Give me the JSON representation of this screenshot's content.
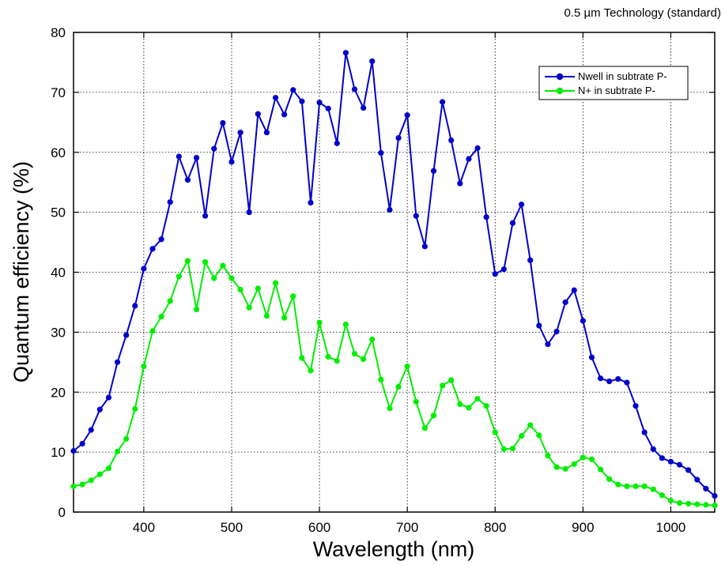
{
  "chart_data": {
    "type": "line",
    "annotation": "0.5 µm Technology (standard)",
    "xlabel": "Wavelength (nm)",
    "ylabel": "Quantum efficiency (%)",
    "xlim": [
      320,
      1050
    ],
    "ylim": [
      0,
      80
    ],
    "xticks": [
      400,
      500,
      600,
      700,
      800,
      900,
      1000
    ],
    "yticks": [
      0,
      10,
      20,
      30,
      40,
      50,
      60,
      70,
      80
    ],
    "grid": true,
    "legend_position": "top-right",
    "series": [
      {
        "name": "Nwell in subtrate P-",
        "color": "#0000cc",
        "x": [
          320,
          330,
          340,
          350,
          360,
          370,
          380,
          390,
          400,
          410,
          420,
          430,
          440,
          450,
          460,
          470,
          480,
          490,
          500,
          510,
          520,
          530,
          540,
          550,
          560,
          570,
          580,
          590,
          600,
          610,
          620,
          630,
          640,
          650,
          660,
          670,
          680,
          690,
          700,
          710,
          720,
          730,
          740,
          750,
          760,
          770,
          780,
          790,
          800,
          810,
          820,
          830,
          840,
          850,
          860,
          870,
          880,
          890,
          900,
          910,
          920,
          930,
          940,
          950,
          960,
          970,
          980,
          990,
          1000,
          1010,
          1020,
          1030,
          1040,
          1050
        ],
        "y": [
          10.2,
          11.4,
          13.7,
          17.1,
          19.1,
          25.0,
          29.5,
          34.4,
          40.6,
          43.9,
          45.5,
          51.7,
          59.3,
          55.4,
          59.1,
          49.4,
          60.6,
          64.9,
          58.4,
          63.3,
          50.0,
          66.4,
          63.3,
          69.1,
          66.3,
          70.4,
          68.5,
          51.6,
          68.3,
          67.3,
          61.5,
          76.6,
          70.5,
          67.4,
          75.2,
          59.9,
          50.4,
          62.4,
          66.2,
          49.4,
          44.3,
          56.9,
          68.4,
          62.0,
          54.8,
          58.9,
          60.7,
          49.2,
          39.7,
          40.5,
          48.2,
          51.3,
          42.0,
          31.1,
          28.0,
          30.1,
          35.0,
          37.0,
          31.9,
          25.8,
          22.3,
          21.8,
          22.2,
          21.6,
          17.7,
          13.3,
          10.5,
          9.0,
          8.4,
          7.9,
          7.0,
          5.4,
          3.9,
          2.7
        ]
      },
      {
        "name": "N+ in subtrate P-",
        "color": "#00ee00",
        "x": [
          320,
          330,
          340,
          350,
          360,
          370,
          380,
          390,
          400,
          410,
          420,
          430,
          440,
          450,
          460,
          470,
          480,
          490,
          500,
          510,
          520,
          530,
          540,
          550,
          560,
          570,
          580,
          590,
          600,
          610,
          620,
          630,
          640,
          650,
          660,
          670,
          680,
          690,
          700,
          710,
          720,
          730,
          740,
          750,
          760,
          770,
          780,
          790,
          800,
          810,
          820,
          830,
          840,
          850,
          860,
          870,
          880,
          890,
          900,
          910,
          920,
          930,
          940,
          950,
          960,
          970,
          980,
          990,
          1000,
          1010,
          1020,
          1030,
          1040,
          1050
        ],
        "y": [
          4.3,
          4.6,
          5.3,
          6.3,
          7.3,
          10.1,
          12.2,
          17.2,
          24.3,
          30.2,
          32.6,
          35.2,
          39.3,
          41.9,
          33.8,
          41.7,
          39.0,
          41.1,
          39.0,
          37.1,
          34.1,
          37.3,
          32.7,
          38.2,
          32.4,
          36.0,
          25.7,
          23.6,
          31.6,
          25.9,
          25.2,
          31.3,
          26.4,
          25.5,
          28.8,
          22.1,
          17.3,
          20.9,
          24.3,
          18.4,
          14.0,
          16.1,
          21.1,
          22.0,
          18.0,
          17.4,
          18.9,
          17.7,
          13.3,
          10.5,
          10.6,
          12.7,
          14.5,
          12.8,
          9.4,
          7.5,
          7.2,
          8.0,
          9.1,
          8.8,
          7.1,
          5.5,
          4.6,
          4.3,
          4.3,
          4.3,
          3.8,
          2.8,
          1.9,
          1.5,
          1.4,
          1.3,
          1.2,
          1.1
        ]
      }
    ]
  }
}
